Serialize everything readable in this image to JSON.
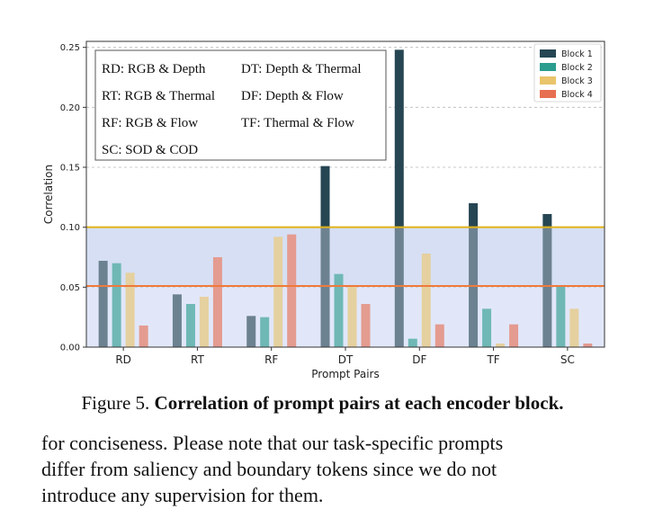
{
  "chart_data": {
    "type": "bar",
    "categories": [
      "RD",
      "RT",
      "RF",
      "DT",
      "DF",
      "TF",
      "SC"
    ],
    "series": [
      {
        "name": "Block 1",
        "color": "#264653",
        "values": [
          0.072,
          0.044,
          0.026,
          0.151,
          0.248,
          0.12,
          0.111
        ]
      },
      {
        "name": "Block 2",
        "color": "#2a9d8f",
        "values": [
          0.07,
          0.036,
          0.025,
          0.061,
          0.007,
          0.032,
          0.051
        ]
      },
      {
        "name": "Block 3",
        "color": "#e9c46a",
        "values": [
          0.062,
          0.042,
          0.092,
          0.051,
          0.078,
          0.003,
          0.032
        ]
      },
      {
        "name": "Block 4",
        "color": "#e76f51",
        "values": [
          0.018,
          0.075,
          0.094,
          0.036,
          0.019,
          0.019,
          0.003
        ]
      }
    ],
    "xlabel": "Prompt Pairs",
    "ylabel": "Correlation",
    "ylim": [
      0,
      0.255
    ],
    "yticks": [
      "0.00",
      "0.05",
      "0.10",
      "0.15",
      "0.20",
      "0.25"
    ],
    "ytick_values": [
      0,
      0.05,
      0.1,
      0.15,
      0.2,
      0.25
    ],
    "grid": "horizontal dashed",
    "legend_position": "top-right",
    "thresholds": [
      {
        "value": 0.1,
        "color": "#e2b317"
      },
      {
        "value": 0.051,
        "color": "#ef7a3a"
      }
    ],
    "bands": [
      {
        "from": 0.0,
        "to": 0.051,
        "color": "#ccd6f5"
      },
      {
        "from": 0.051,
        "to": 0.1,
        "color": "#a9bde9"
      }
    ],
    "annotation_lines": [
      [
        "RD: RGB & Depth",
        "DT: Depth & Thermal"
      ],
      [
        "RT: RGB & Thermal",
        "DF: Depth & Flow"
      ],
      [
        "RF: RGB & Flow",
        "TF: Thermal & Flow"
      ],
      [
        "SC: SOD & COD",
        ""
      ]
    ]
  },
  "caption": {
    "prefix": "Figure 5. ",
    "bold": "Correlation of prompt pairs at each encoder block."
  },
  "body_lines": [
    "for conciseness. Please note that our task-specific prompts",
    "differ from saliency and boundary tokens since we do not",
    "introduce any supervision for them."
  ]
}
